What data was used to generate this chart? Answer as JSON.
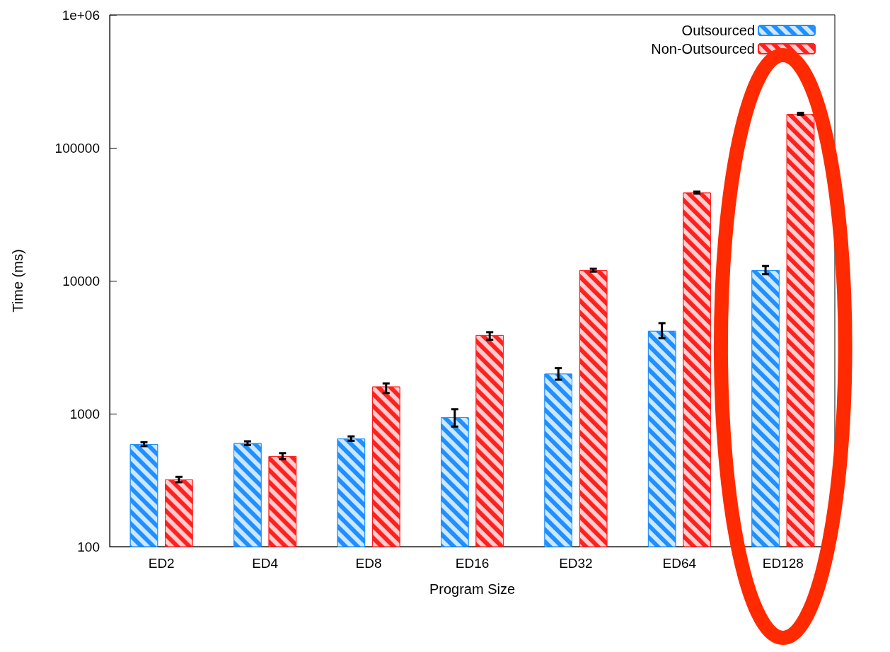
{
  "chart_data": {
    "type": "bar",
    "xlabel": "Program Size",
    "ylabel": "Time (ms)",
    "categories": [
      "ED2",
      "ED4",
      "ED8",
      "ED16",
      "ED32",
      "ED64",
      "ED128"
    ],
    "series": [
      {
        "name": "Outsourced",
        "color": "#1e90ff",
        "values": [
          590,
          600,
          650,
          940,
          2000,
          4200,
          12000
        ],
        "errors": [
          20,
          20,
          25,
          [
            800,
            1080
          ],
          [
            1800,
            2200
          ],
          [
            3700,
            4800
          ],
          [
            11200,
            12900
          ]
        ]
      },
      {
        "name": "Non-Outsourced",
        "color": "#ff2020",
        "values": [
          320,
          480,
          1600,
          3900,
          12000,
          46000,
          180000
        ],
        "errors": [
          15,
          25,
          [
            1430,
            1690
          ],
          [
            3600,
            4100
          ],
          300,
          800,
          3000
        ]
      }
    ],
    "log": "y",
    "ylim": [
      100,
      1000000
    ],
    "yticks": [
      100,
      1000,
      10000,
      100000,
      {
        "value": 1000000,
        "label": "1e+06"
      }
    ],
    "grid": false,
    "legend": "top right"
  }
}
